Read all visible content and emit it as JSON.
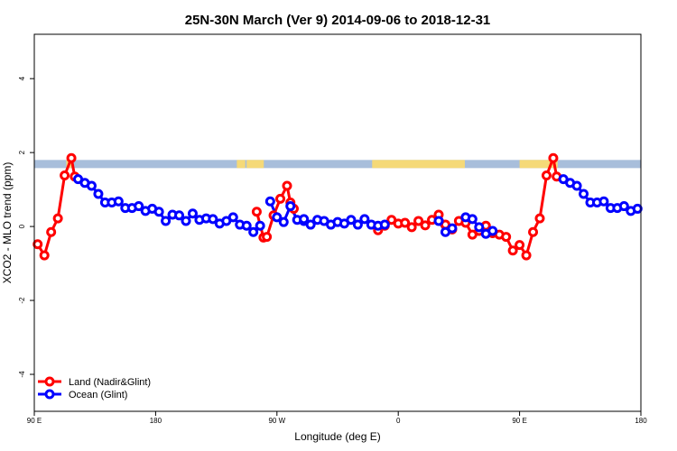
{
  "chart_data": {
    "type": "line",
    "title": "25N-30N March (Ver 9)   2014-09-06 to 2018-12-31",
    "xlabel": "Longitude (deg E)",
    "ylabel": "XCO2 - MLO trend (ppm)",
    "xlim": [
      90,
      450
    ],
    "ylim": [
      -5,
      5.2
    ],
    "x_ticks": [
      {
        "value": 90,
        "label": "90 E"
      },
      {
        "value": 162,
        "label": "180"
      },
      {
        "value": 234,
        "label": "90 W"
      },
      {
        "value": 306,
        "label": "0"
      },
      {
        "value": 378,
        "label": "90 E"
      },
      {
        "value": 450,
        "label": "180"
      }
    ],
    "y_ticks": [
      {
        "value": -4,
        "label": "-4"
      },
      {
        "value": -2,
        "label": "-2"
      },
      {
        "value": 0,
        "label": "0"
      },
      {
        "value": 2,
        "label": "2"
      },
      {
        "value": 4,
        "label": "4"
      }
    ],
    "grid": false,
    "legend_position": "bottom-left",
    "map_strip": {
      "y_range": [
        1.58,
        1.8
      ],
      "ocean_color": "#a8bedb",
      "land_color": "#f5d978",
      "land_segments": [
        [
          109.0,
          112.0
        ],
        [
          210.2,
          215.2
        ],
        [
          216.0,
          226.2
        ],
        [
          290.5,
          345.5
        ],
        [
          378.0,
          400.6
        ]
      ]
    },
    "series": [
      {
        "name": "Land (Nadir&Glint)",
        "color": "#ff0000",
        "segments": [
          {
            "x": [
              92,
              96,
              100,
              104,
              108,
              112,
              114
            ],
            "y": [
              -0.48,
              -0.78,
              -0.15,
              0.22,
              1.38,
              1.85,
              1.35
            ]
          },
          {
            "x": [
              222,
              226,
              228,
              232,
              236,
              240,
              242,
              244
            ],
            "y": [
              0.4,
              -0.3,
              -0.28,
              0.3,
              0.75,
              1.1,
              0.65,
              0.48
            ]
          },
          {
            "x": [
              294,
              298,
              302,
              306,
              310,
              314,
              318,
              322,
              326,
              330,
              334,
              338,
              342,
              346,
              350,
              354,
              358,
              362,
              366,
              370,
              374,
              378,
              382,
              386,
              390,
              394,
              398,
              400
            ],
            "y": [
              -0.1,
              0.02,
              0.18,
              0.08,
              0.1,
              -0.02,
              0.15,
              0.03,
              0.18,
              0.32,
              0.05,
              -0.08,
              0.15,
              0.1,
              -0.22,
              -0.12,
              0.02,
              -0.18,
              -0.22,
              -0.28,
              -0.65,
              -0.5,
              -0.78,
              -0.15,
              0.22,
              1.38,
              1.85,
              1.35
            ]
          }
        ]
      },
      {
        "name": "Ocean (Glint)",
        "color": "#0000ff",
        "segments": [
          {
            "x": [
              116,
              120,
              124,
              128,
              132,
              136,
              140,
              144,
              148,
              152,
              156,
              160,
              164,
              168,
              172,
              176,
              180,
              184,
              188,
              192,
              196,
              200,
              204,
              208,
              212,
              216,
              220,
              224
            ],
            "y": [
              1.28,
              1.18,
              1.1,
              0.88,
              0.65,
              0.65,
              0.68,
              0.5,
              0.5,
              0.55,
              0.42,
              0.48,
              0.4,
              0.15,
              0.32,
              0.3,
              0.15,
              0.35,
              0.18,
              0.22,
              0.2,
              0.08,
              0.15,
              0.25,
              0.05,
              0.02,
              -0.15,
              0.02
            ]
          },
          {
            "x": [
              230,
              234,
              238,
              242,
              246,
              250
            ],
            "y": [
              0.68,
              0.25,
              0.12,
              0.55,
              0.18,
              0.15
            ]
          },
          {
            "x": [
              250,
              254,
              258,
              262,
              266,
              270,
              274,
              278,
              282,
              286,
              290,
              294,
              298
            ],
            "y": [
              0.2,
              0.05,
              0.18,
              0.15,
              0.05,
              0.12,
              0.08,
              0.18,
              0.05,
              0.2,
              0.05,
              0.02,
              0.05
            ]
          },
          {
            "x": [
              330,
              334,
              338
            ],
            "y": [
              0.15,
              -0.15,
              -0.05
            ]
          },
          {
            "x": [
              346,
              350,
              354,
              358,
              362
            ],
            "y": [
              0.25,
              0.2,
              -0.02,
              -0.2,
              -0.12
            ]
          },
          {
            "x": [
              404,
              408,
              412,
              416,
              420,
              424,
              428,
              432,
              436,
              440,
              444,
              448
            ],
            "y": [
              1.28,
              1.18,
              1.1,
              0.88,
              0.65,
              0.65,
              0.68,
              0.5,
              0.5,
              0.55,
              0.42,
              0.48
            ]
          }
        ]
      }
    ]
  }
}
